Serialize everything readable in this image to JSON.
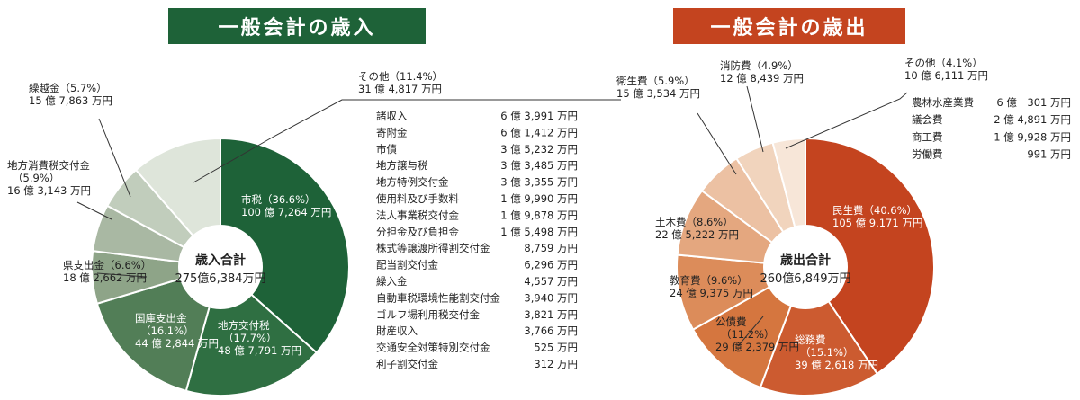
{
  "chart_data": [
    {
      "type": "pie",
      "title": "一般会計の歳入",
      "center_title": "歳入合計",
      "center_value": "275億6,384万円",
      "categories": [
        "市税",
        "地方交付税",
        "国庫支出金",
        "県支出金",
        "地方消費税交付金",
        "繰越金",
        "その他"
      ],
      "values": [
        36.6,
        17.7,
        16.1,
        6.6,
        5.9,
        5.7,
        11.4
      ],
      "colors": [
        "#1e6238",
        "#2f6f42",
        "#527e57",
        "#8ea488",
        "#a9b8a3",
        "#c1cdbc",
        "#dee5da"
      ],
      "slice_labels": [
        {
          "name": "市税（36.6%）",
          "amount": "100 億 7,264 万円"
        },
        {
          "name": "地方交付税",
          "pct": "（17.7%）",
          "amount": "48 億 7,791 万円"
        },
        {
          "name": "国庫支出金",
          "pct": "（16.1%）",
          "amount": "44 億 2,844 万円"
        },
        {
          "name": "県支出金（6.6%）",
          "amount": "18 億 2,662 万円"
        },
        {
          "name": "地方消費税交付金",
          "pct": "（5.9%）",
          "amount": "16 億 3,143 万円"
        },
        {
          "name": "繰越金（5.7%）",
          "amount": "15 億 7,863 万円"
        },
        {
          "name": "その他（11.4%）",
          "amount": "31 億 4,817 万円"
        }
      ],
      "other_breakdown": [
        {
          "name": "諸収入",
          "amount": "6 億 3,991 万円"
        },
        {
          "name": "寄附金",
          "amount": "6 億 1,412 万円"
        },
        {
          "name": "市債",
          "amount": "3 億 5,232 万円"
        },
        {
          "name": "地方譲与税",
          "amount": "3 億 3,485 万円"
        },
        {
          "name": "地方特例交付金",
          "amount": "3 億 3,355 万円"
        },
        {
          "name": "使用料及び手数料",
          "amount": "1 億 9,990 万円"
        },
        {
          "name": "法人事業税交付金",
          "amount": "1 億 9,878 万円"
        },
        {
          "name": "分担金及び負担金",
          "amount": "1 億 5,498 万円"
        },
        {
          "name": "株式等譲渡所得割交付金",
          "amount": "8,759 万円"
        },
        {
          "name": "配当割交付金",
          "amount": "6,296 万円"
        },
        {
          "name": "繰入金",
          "amount": "4,557 万円"
        },
        {
          "name": "自動車税環境性能割交付金",
          "amount": "3,940 万円"
        },
        {
          "name": "ゴルフ場利用税交付金",
          "amount": "3,821 万円"
        },
        {
          "name": "財産収入",
          "amount": "3,766 万円"
        },
        {
          "name": "交通安全対策特別交付金",
          "amount": "525 万円"
        },
        {
          "name": "利子割交付金",
          "amount": "312 万円"
        }
      ]
    },
    {
      "type": "pie",
      "title": "一般会計の歳出",
      "center_title": "歳出合計",
      "center_value": "260億6,849万円",
      "categories": [
        "民生費",
        "総務費",
        "公債費",
        "教育費",
        "土木費",
        "衛生費",
        "消防費",
        "その他"
      ],
      "values": [
        40.6,
        15.1,
        11.2,
        9.6,
        8.6,
        5.9,
        4.9,
        4.1
      ],
      "colors": [
        "#c4441f",
        "#cc5b30",
        "#d5763f",
        "#dc8c5a",
        "#e4a77f",
        "#ecc1a3",
        "#f1d4bd",
        "#f7e6d8"
      ],
      "slice_labels": [
        {
          "name": "民生費（40.6%）",
          "amount": "105 億 9,171 万円"
        },
        {
          "name": "総務費",
          "pct": "（15.1%）",
          "amount": "39 億 2,618 万円"
        },
        {
          "name": "公債費",
          "pct": "（11.2%）",
          "amount": "29 億 2,379 万円"
        },
        {
          "name": "教育費（9.6%）",
          "amount": "24 億 9,375 万円"
        },
        {
          "name": "土木費（8.6%）",
          "amount": "22 億 5,222 万円"
        },
        {
          "name": "衛生費（5.9%）",
          "amount": "15 億 3,534 万円"
        },
        {
          "name": "消防費（4.9%）",
          "amount": "12 億 8,439 万円"
        },
        {
          "name": "その他（4.1%）",
          "amount": "10 億 6,111 万円"
        }
      ],
      "other_breakdown": [
        {
          "name": "農林水産業費",
          "amount": "6 億　301 万円"
        },
        {
          "name": "議会費",
          "amount": "2 億 4,891 万円"
        },
        {
          "name": "商工費",
          "amount": "1 億 9,928 万円"
        },
        {
          "name": "労働費",
          "amount": "991 万円"
        }
      ]
    }
  ],
  "theme": {
    "revenue_header": "#1e6238",
    "expenditure_header": "#c4441f"
  }
}
